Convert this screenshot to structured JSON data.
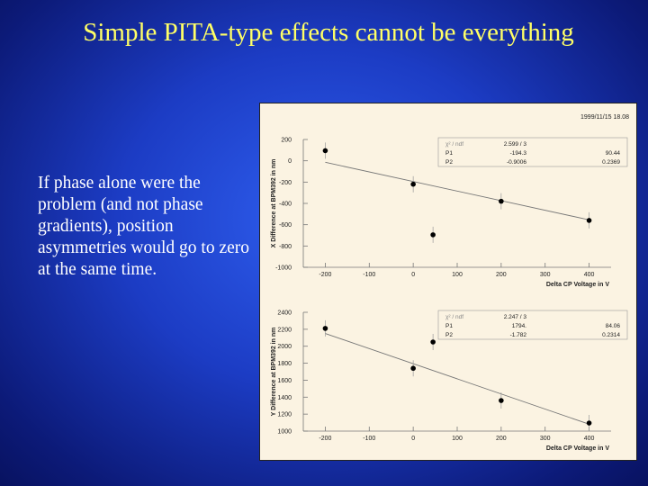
{
  "slide": {
    "title": "Simple PITA-type effects cannot be everything",
    "body": "If phase alone were the problem (and not phase gradients), position asymmetries would go to zero at the same time."
  },
  "timestamp": "1999/11/15   18.08",
  "colors": {
    "background": "#1c3cc4",
    "title": "#ffff66",
    "text": "#ffffff",
    "panel": "#fbf3e2"
  },
  "chart_data": [
    {
      "type": "scatter",
      "xlabel": "Delta CP Voltage in V",
      "ylabel": "X Difference at BPM392 in nm",
      "xlim": [
        -250,
        450
      ],
      "ylim": [
        -1000,
        200
      ],
      "xticks": [
        -200,
        -100,
        0,
        100,
        200,
        300,
        400
      ],
      "yticks": [
        200,
        0,
        -200,
        -400,
        -600,
        -800,
        -1000
      ],
      "points": [
        {
          "x": -200,
          "y": 95
        },
        {
          "x": 0,
          "y": -220
        },
        {
          "x": 45,
          "y": -695
        },
        {
          "x": 200,
          "y": -380
        },
        {
          "x": 400,
          "y": -560
        }
      ],
      "fit": {
        "intercept": -194.3,
        "slope": -0.9006
      },
      "stats": [
        {
          "label": "χ² / ndf",
          "value": "2.599    /    3",
          "error": ""
        },
        {
          "label": "P1",
          "value": "-194.3",
          "error": "90.44"
        },
        {
          "label": "P2",
          "value": "-0.9006",
          "error": "0.2369"
        }
      ]
    },
    {
      "type": "scatter",
      "xlabel": "Delta CP Voltage in V",
      "ylabel": "Y Difference at BPM392 in nm",
      "xlim": [
        -250,
        450
      ],
      "ylim": [
        1000,
        2400
      ],
      "xticks": [
        -200,
        -100,
        0,
        100,
        200,
        300,
        400
      ],
      "yticks": [
        2400,
        2200,
        2000,
        1800,
        1600,
        1400,
        1200,
        1000
      ],
      "points": [
        {
          "x": -200,
          "y": 2210
        },
        {
          "x": 0,
          "y": 1740
        },
        {
          "x": 45,
          "y": 2050
        },
        {
          "x": 200,
          "y": 1360
        },
        {
          "x": 400,
          "y": 1095
        }
      ],
      "fit": {
        "intercept": 1794,
        "slope": -1.782
      },
      "stats": [
        {
          "label": "χ² / ndf",
          "value": "2.247    /    3",
          "error": ""
        },
        {
          "label": "P1",
          "value": "1794.",
          "error": "84.06"
        },
        {
          "label": "P2",
          "value": "-1.782",
          "error": "0.2314"
        }
      ]
    }
  ]
}
